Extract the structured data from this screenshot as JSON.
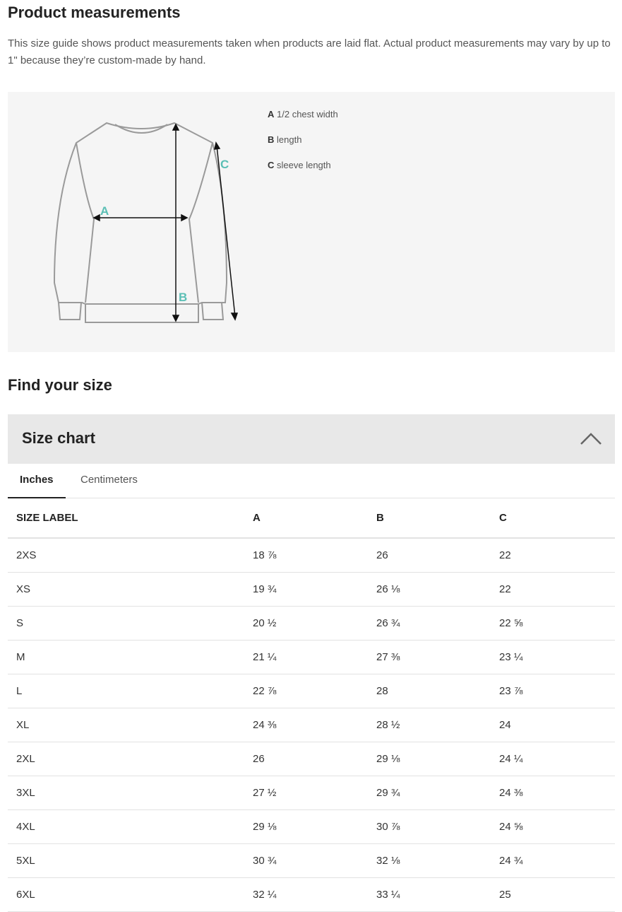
{
  "measurements": {
    "title": "Product measurements",
    "description": "This size guide shows product measurements taken when products are laid flat. Actual product measurements may vary by up to 1\" because they’re custom-made by hand.",
    "legend": [
      {
        "key": "A",
        "label": "1/2 chest width"
      },
      {
        "key": "B",
        "label": "length"
      },
      {
        "key": "C",
        "label": "sleeve length"
      }
    ],
    "accent_color": "#5bbfb5"
  },
  "find": {
    "title": "Find your size"
  },
  "size_chart": {
    "title": "Size chart",
    "expanded": true,
    "tabs": [
      {
        "label": "Inches",
        "active": true
      },
      {
        "label": "Centimeters",
        "active": false
      }
    ],
    "columns": [
      "SIZE LABEL",
      "A",
      "B",
      "C"
    ],
    "rows": [
      [
        "2XS",
        "18 ⅞",
        "26",
        "22"
      ],
      [
        "XS",
        "19 ¾",
        "26 ⅛",
        "22"
      ],
      [
        "S",
        "20 ½",
        "26 ¾",
        "22 ⅝"
      ],
      [
        "M",
        "21 ¼",
        "27 ⅜",
        "23 ¼"
      ],
      [
        "L",
        "22 ⅞",
        "28",
        "23 ⅞"
      ],
      [
        "XL",
        "24 ⅜",
        "28 ½",
        "24"
      ],
      [
        "2XL",
        "26",
        "29 ⅛",
        "24 ¼"
      ],
      [
        "3XL",
        "27 ½",
        "29 ¾",
        "24 ⅜"
      ],
      [
        "4XL",
        "29 ⅛",
        "30 ⅞",
        "24 ⅝"
      ],
      [
        "5XL",
        "30 ¾",
        "32 ⅛",
        "24 ¾"
      ],
      [
        "6XL",
        "32 ¼",
        "33 ¼",
        "25"
      ]
    ]
  }
}
